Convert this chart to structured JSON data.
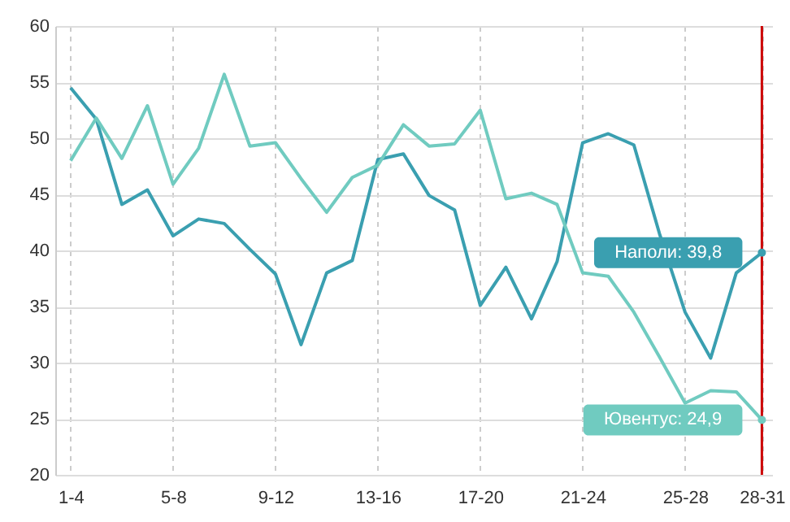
{
  "chart_data": {
    "type": "line",
    "categories": [
      "1-4",
      null,
      null,
      null,
      "5-8",
      null,
      null,
      null,
      "9-12",
      null,
      null,
      null,
      "13-16",
      null,
      null,
      null,
      "17-20",
      null,
      null,
      null,
      "21-24",
      null,
      null,
      null,
      "25-28",
      null,
      null,
      "28-31"
    ],
    "series": [
      {
        "color": "#3a9fb0",
        "values": [
          54.5,
          51.7,
          44.1,
          45.4,
          41.3,
          42.8,
          42.4,
          40.1,
          37.9,
          31.6,
          38.0,
          39.1,
          48.1,
          48.6,
          44.9,
          43.6,
          35.1,
          38.5,
          33.9,
          39.0,
          49.6,
          50.4,
          49.4,
          41.5,
          34.5,
          30.4,
          38.0,
          39.8
        ]
      },
      {
        "color": "#70cbc0",
        "values": [
          48.0,
          51.8,
          48.2,
          52.9,
          45.9,
          49.1,
          55.7,
          49.3,
          49.6,
          46.4,
          43.4,
          46.5,
          47.6,
          51.2,
          49.3,
          49.5,
          52.5,
          44.6,
          45.1,
          44.1,
          38.0,
          37.7,
          34.5,
          30.5,
          26.4,
          27.5,
          27.4,
          24.9
        ]
      }
    ],
    "ylim": [
      20,
      60
    ],
    "yticks": [
      20,
      25,
      30,
      35,
      40,
      45,
      50,
      55,
      60
    ],
    "grid": true,
    "marker": "none",
    "line_style": "solid",
    "ref_lines": [
      {
        "axis": "x",
        "value": "28-31",
        "color": "#cc0000"
      }
    ],
    "annotations": [
      {
        "text": "Наполи: 39,8",
        "x": "28-31",
        "y": 39.8
      },
      {
        "text": "Ювентус: 24,9",
        "x": "28-31",
        "y": 24.9
      }
    ]
  }
}
